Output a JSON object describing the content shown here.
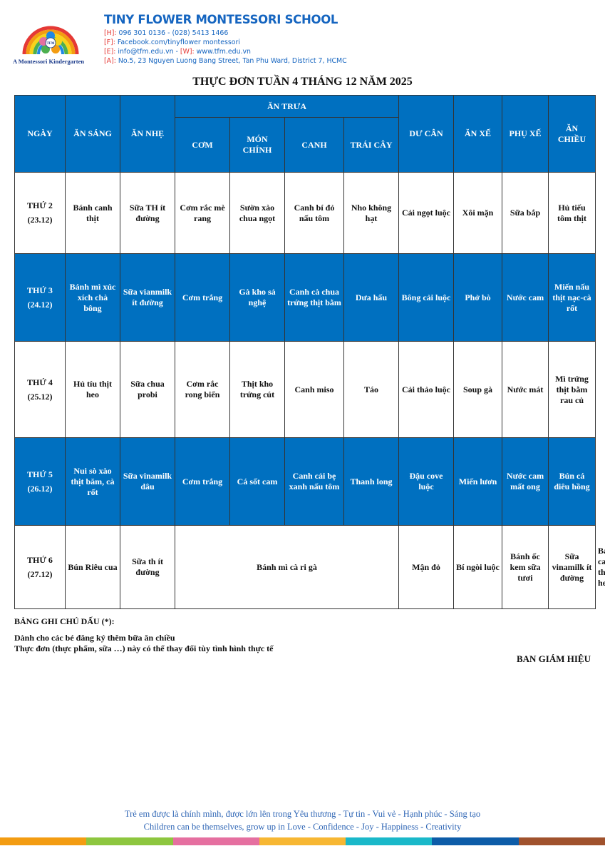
{
  "school": {
    "logo_text": "TINY FLOWER INTERNATIONAL EDUCATION",
    "logo_center": "TFM",
    "logo_caption": "A Montessori Kindergarten",
    "name": "TINY FLOWER MONTESSORI SCHOOL",
    "contacts": [
      {
        "key": "[H]:",
        "value": " 096 301 0136 - (028) 5413 1466"
      },
      {
        "key": "[F]:",
        "value": " Facebook.com/tinyflower montessori"
      },
      {
        "key": "[E]:",
        "value": " info@tfm.edu.vn - ",
        "key2": "[W]:",
        "value2": " www.tfm.edu.vn"
      },
      {
        "key": "[A]:",
        "value": " No.5, 23 Nguyen Luong Bang Street, Tan Phu Ward, District 7, HCMC"
      }
    ]
  },
  "title": "THỰC ĐƠN TUẦN 4 THÁNG 12 NĂM 2025",
  "table": {
    "headers": {
      "ngay": "NGÀY",
      "an_sang": "ĂN SÁNG",
      "an_nhe": "ĂN NHẸ",
      "an_trua": "ĂN TRƯA",
      "com": "CƠM",
      "mon_chinh": "MÓN CHÍNH",
      "canh": "CANH",
      "trai_cay": "TRÁI CÂY",
      "du_can": "DƯ CÂN",
      "an_xe": "ĂN XẾ",
      "phu_xe": "PHỤ XẾ",
      "an_chieu": "ĂN CHIỀU"
    },
    "rows": [
      {
        "day": "THỨ 2",
        "date": "(23.12)",
        "cells": [
          "Bánh canh thịt",
          "Sữa TH ít đường",
          "Cơm rắc mè rang",
          "Sườn xào chua ngọt",
          "Canh bí đỏ nấu tôm",
          "Nho không hạt",
          "Cải ngọt luộc",
          "Xôi mặn",
          "Sữa bắp",
          "Hủ tiếu tôm thịt"
        ]
      },
      {
        "day": "THỨ 3",
        "date": "(24.12)",
        "cells": [
          "Bánh mì xúc xích chà bông",
          "Sữa vianmilk ít đường",
          "Cơm trắng",
          "Gà kho sả nghệ",
          "Canh cà chua trứng thịt bằm",
          "Dưa hấu",
          "Bông cải luộc",
          "Phở bò",
          "Nước cam",
          "Miến nấu thịt nạc-cà rốt"
        ]
      },
      {
        "day": "THỨ 4",
        "date": "(25.12)",
        "cells": [
          "Hủ tíu thịt heo",
          "Sữa chua probi",
          "Cơm rắc rong biển",
          "Thịt kho trứng cút",
          "Canh miso",
          "Táo",
          "Cải thảo luộc",
          "Soup gà",
          "Nước mát",
          "Mì trứng thịt bằm rau củ"
        ]
      },
      {
        "day": "THỨ 5",
        "date": "(26.12)",
        "cells": [
          "Nui sò xào thịt băm, cà rốt",
          "Sữa vinamilk dâu",
          "Cơm trắng",
          "Cá sốt cam",
          "Canh cải bẹ xanh nấu tôm",
          "Thanh long",
          "Đậu cove luộc",
          "Miến lươn",
          "Nước cam mất ong",
          "Bún cá diêu hồng"
        ]
      },
      {
        "day": "THỨ 6",
        "date": "(27.12)",
        "cells": [
          "Bún Riêu cua",
          "Sữa th ít đường",
          "Bánh mì cà ri gà",
          "Mận đỏ",
          "Bí ngòi luộc",
          "Bánh ốc kem sữa tươi",
          "Sữa vinamilk ít đường",
          "Bánh canh thịt heo"
        ]
      }
    ]
  },
  "notes": {
    "heading": "BẢNG GHI CHÚ DẤU (*):",
    "line1": "Dành cho các bé  đăng ký thêm bữa ăn chiều",
    "line2": "Thực đơn  (thực phẩm, sữa …) này có thể  thay đổi  tùy  tình  hình  thực  tế"
  },
  "signature": "BAN GIÁM HIỆU",
  "slogan": {
    "vi": "Trẻ em được là chính mình, được lớn lên trong Yêu thương - Tự tin - Vui vẻ - Hạnh phúc - Sáng tạo",
    "en": "Children can be themselves, grow up in Love - Confidence - Joy - Happiness - Creativity"
  },
  "colors": {
    "table_blue": "#0070c0",
    "brand_blue": "#1565c0",
    "footer_bar": [
      "#f39c12",
      "#8dc63f",
      "#e56fa0",
      "#f7b733",
      "#1ab8c9",
      "#0d5ca8",
      "#a0522d"
    ]
  }
}
